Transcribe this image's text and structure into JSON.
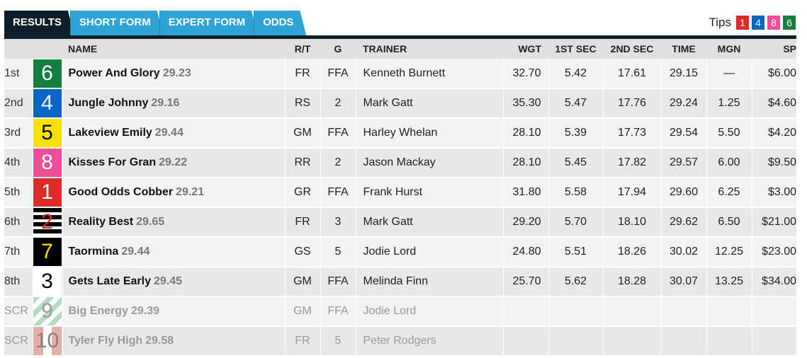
{
  "tabs": [
    {
      "label": "RESULTS",
      "active": true
    },
    {
      "label": "SHORT FORM",
      "active": false
    },
    {
      "label": "EXPERT FORM",
      "active": false
    },
    {
      "label": "ODDS",
      "active": false
    }
  ],
  "tips": {
    "label": "Tips",
    "chips": [
      {
        "number": "1",
        "color": "#dc2b28"
      },
      {
        "number": "4",
        "color": "#0a65c4"
      },
      {
        "number": "8",
        "color": "#ee4f97"
      },
      {
        "number": "6",
        "color": "#147f3f"
      }
    ]
  },
  "table": {
    "headers": {
      "name": "NAME",
      "rt": "R/T",
      "g": "G",
      "trainer": "TRAINER",
      "wgt": "WGT",
      "sec1": "1ST SEC",
      "sec2": "2ND SEC",
      "time": "TIME",
      "mgn": "MGN",
      "sp": "SP"
    },
    "rows": [
      {
        "place": "1st",
        "rug": "6",
        "name": "Power And Glory",
        "best_time": "29.23",
        "rt": "FR",
        "g": "FFA",
        "trainer": "Kenneth Burnett",
        "wgt": "32.70",
        "sec1": "5.42",
        "sec2": "17.61",
        "time": "29.15",
        "mgn": "—",
        "sp": "$6.00",
        "scratched": false
      },
      {
        "place": "2nd",
        "rug": "4",
        "name": "Jungle Johnny",
        "best_time": "29.16",
        "rt": "RS",
        "g": "2",
        "trainer": "Mark Gatt",
        "wgt": "35.30",
        "sec1": "5.47",
        "sec2": "17.76",
        "time": "29.24",
        "mgn": "1.25",
        "sp": "$4.60",
        "scratched": false
      },
      {
        "place": "3rd",
        "rug": "5",
        "name": "Lakeview Emily",
        "best_time": "29.44",
        "rt": "GM",
        "g": "FFA",
        "trainer": "Harley Whelan",
        "wgt": "28.10",
        "sec1": "5.39",
        "sec2": "17.73",
        "time": "29.54",
        "mgn": "5.50",
        "sp": "$4.20",
        "scratched": false
      },
      {
        "place": "4th",
        "rug": "8",
        "name": "Kisses For Gran",
        "best_time": "29.22",
        "rt": "RR",
        "g": "2",
        "trainer": "Jason Mackay",
        "wgt": "28.10",
        "sec1": "5.45",
        "sec2": "17.82",
        "time": "29.57",
        "mgn": "6.00",
        "sp": "$9.50",
        "scratched": false
      },
      {
        "place": "5th",
        "rug": "1",
        "name": "Good Odds Cobber",
        "best_time": "29.21",
        "rt": "GR",
        "g": "FFA",
        "trainer": "Frank Hurst",
        "wgt": "31.80",
        "sec1": "5.58",
        "sec2": "17.94",
        "time": "29.60",
        "mgn": "6.25",
        "sp": "$3.00",
        "scratched": false
      },
      {
        "place": "6th",
        "rug": "2",
        "name": "Reality Best",
        "best_time": "29.65",
        "rt": "FR",
        "g": "3",
        "trainer": "Mark Gatt",
        "wgt": "29.20",
        "sec1": "5.70",
        "sec2": "18.10",
        "time": "29.62",
        "mgn": "6.50",
        "sp": "$21.00",
        "scratched": false
      },
      {
        "place": "7th",
        "rug": "7",
        "name": "Taormina",
        "best_time": "29.44",
        "rt": "GS",
        "g": "5",
        "trainer": "Jodie Lord",
        "wgt": "24.80",
        "sec1": "5.51",
        "sec2": "18.26",
        "time": "30.02",
        "mgn": "12.25",
        "sp": "$23.00",
        "scratched": false
      },
      {
        "place": "8th",
        "rug": "3",
        "name": "Gets Late Early",
        "best_time": "29.45",
        "rt": "GM",
        "g": "FFA",
        "trainer": "Melinda Finn",
        "wgt": "25.70",
        "sec1": "5.62",
        "sec2": "18.28",
        "time": "30.07",
        "mgn": "13.25",
        "sp": "$34.00",
        "scratched": false
      },
      {
        "place": "SCR",
        "rug": "9",
        "name": "Big Energy",
        "best_time": "29.39",
        "rt": "GM",
        "g": "FFA",
        "trainer": "Jodie Lord",
        "wgt": "",
        "sec1": "",
        "sec2": "",
        "time": "",
        "mgn": "",
        "sp": "",
        "scratched": true
      },
      {
        "place": "SCR",
        "rug": "10",
        "name": "Tyler Fly High",
        "best_time": "29.58",
        "rt": "FR",
        "g": "5",
        "trainer": "Peter Rodgers",
        "wgt": "",
        "sec1": "",
        "sec2": "",
        "time": "",
        "mgn": "",
        "sp": "",
        "scratched": true
      }
    ]
  }
}
